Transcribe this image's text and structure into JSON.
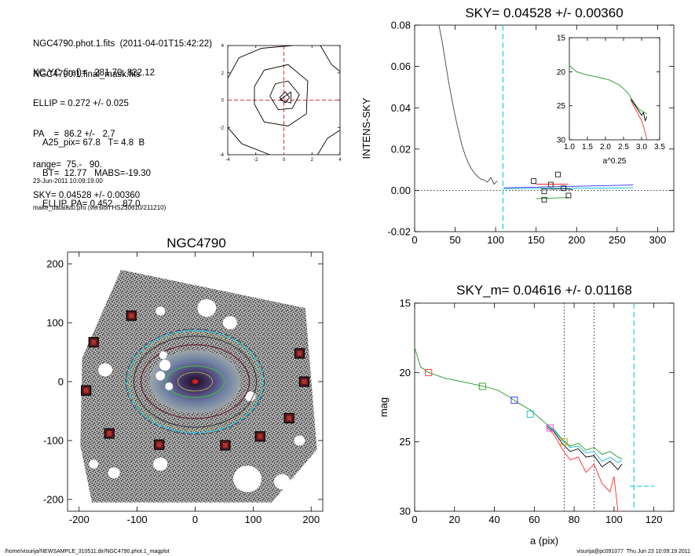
{
  "header": {
    "lines1": [
      "NGC4790.phot.1.fits  (2011-04-01T15:42:22)",
      "NGC4790.1.final_mask.fits"
    ],
    "lines2": [
      "XC,YC (iraf)=   281.70, 822.12",
      "ELLIP = 0.272 +/- 0.025",
      "PA    =  86.2 +/-   2.7",
      "range=  75.-   90.",
      "SKY= 0.04528 +/- 0.00360"
    ],
    "lines3": [
      "A25_pix= 67.8   T= 4.8  B",
      "BT=  12.77   MABS=-19.30",
      "ELLIP, PA= 0.452    87.0"
    ],
    "lines4": [
      "23-Jun-2011 10:09:19.00",
      "make_datalist0.pro (version HS230610/211210)"
    ]
  },
  "footer": {
    "left": "/home/visurija/NEWSAMPLE_310511.dir/NGC4790.phot.1_magplot",
    "right": "visurija@pc091077  Thu Jun 23 10:09:19 2011"
  },
  "chart_data": [
    {
      "id": "center-contour",
      "type": "contour",
      "title": "",
      "xlim": [
        -4,
        4
      ],
      "ylim": [
        -4,
        4
      ],
      "xticks": [
        -4,
        -2,
        0,
        2,
        4
      ],
      "yticks": [
        -4,
        -2,
        0,
        2,
        4
      ],
      "contours": [
        [
          [
            -0.3,
            0.2
          ],
          [
            0.1,
            0.6
          ],
          [
            0.4,
            0.2
          ],
          [
            0.1,
            -0.2
          ],
          [
            -0.3,
            0.2
          ]
        ],
        [
          [
            -1.0,
            0.3
          ],
          [
            -0.6,
            1.2
          ],
          [
            0.3,
            1.4
          ],
          [
            1.1,
            0.4
          ],
          [
            0.6,
            -0.6
          ],
          [
            -0.4,
            -0.7
          ],
          [
            -1.0,
            0.3
          ]
        ],
        [
          [
            -2.1,
            1.0
          ],
          [
            -1.4,
            2.2
          ],
          [
            0.3,
            2.6
          ],
          [
            1.7,
            1.4
          ],
          [
            1.6,
            -1.0
          ],
          [
            0.3,
            -1.9
          ],
          [
            -1.4,
            -1.6
          ],
          [
            -2.1,
            -0.3
          ],
          [
            -2.1,
            1.0
          ]
        ],
        [
          [
            -4.0,
            1.6
          ],
          [
            -3.2,
            3.1
          ],
          [
            -1.6,
            3.8
          ],
          [
            0.6,
            4.0
          ]
        ],
        [
          [
            2.6,
            4.0
          ],
          [
            3.4,
            2.6
          ],
          [
            4.0,
            2.1
          ]
        ],
        [
          [
            -4.0,
            -2.0
          ],
          [
            -3.0,
            -3.2
          ],
          [
            -1.0,
            -4.0
          ]
        ],
        [
          [
            2.4,
            -4.0
          ],
          [
            3.1,
            -2.8
          ],
          [
            4.0,
            -2.2
          ]
        ]
      ],
      "ellipse_axis": [
        [
          -0.3,
          0.0
        ],
        [
          0.5,
          0.6
        ],
        [
          0.5,
          -0.2
        ],
        [
          -0.3,
          0.0
        ]
      ],
      "crosshair": [
        0,
        0
      ]
    },
    {
      "id": "sky-profile",
      "type": "line",
      "title": "SKY= 0.04528 +/- 0.00360",
      "ylabel": "INTENS-SKY",
      "xlim": [
        0,
        320
      ],
      "ylim": [
        -0.02,
        0.08
      ],
      "xticks": [
        0,
        50,
        100,
        150,
        200,
        250,
        300
      ],
      "yticks": [
        -0.02,
        0.0,
        0.02,
        0.04,
        0.06,
        0.08
      ],
      "series": [
        {
          "color": "#444444",
          "x": [
            30,
            34,
            38,
            42,
            46,
            50,
            54,
            58,
            62,
            66,
            70,
            74,
            78,
            82,
            86,
            90,
            94,
            98,
            102
          ],
          "y": [
            0.08,
            0.072,
            0.062,
            0.0525,
            0.044,
            0.036,
            0.029,
            0.0225,
            0.0175,
            0.0135,
            0.0105,
            0.0082,
            0.0066,
            0.0054,
            0.005,
            0.004,
            0.0062,
            0.003,
            0.0045
          ]
        },
        {
          "color": "#000000",
          "x": [
            155,
            170,
            185,
            195
          ],
          "y": [
            0.001,
            0.0006,
            0.0008,
            0.0004
          ]
        },
        {
          "color": "#ff2a2a",
          "x": [
            150,
            190
          ],
          "y": [
            0.003,
            0.003
          ]
        },
        {
          "color": "#1f9a1f",
          "x": [
            150,
            190
          ],
          "y": [
            -0.004,
            -0.0035
          ]
        },
        {
          "color": "#2a2aff",
          "x": [
            110,
            270
          ],
          "y": [
            0.0012,
            0.0026
          ]
        },
        {
          "color": "#17b9d8",
          "x": [
            110,
            270
          ],
          "y": [
            0.0008,
            0.0012
          ]
        }
      ],
      "squares": [
        [
          147,
          0.0045
        ],
        [
          160,
          -0.0005
        ],
        [
          168,
          0.0028
        ],
        [
          177,
          0.0077
        ],
        [
          184,
          0.001
        ],
        [
          190,
          -0.0025
        ],
        [
          160,
          -0.0045
        ]
      ],
      "sky_line": 109
    },
    {
      "id": "sky-inset",
      "type": "line",
      "xlabel": "a^0.25",
      "xlim": [
        1.0,
        3.5
      ],
      "ylim": [
        30,
        15
      ],
      "xticks": [
        1.0,
        1.5,
        2.0,
        2.5,
        3.0,
        3.5
      ],
      "yticks": [
        15,
        20,
        25,
        30
      ],
      "series": [
        {
          "color": "#1f9a1f",
          "x": [
            1.0,
            1.2,
            1.5,
            1.8,
            2.1,
            2.4,
            2.6,
            2.75,
            2.85,
            2.95,
            3.05,
            3.15
          ],
          "y": [
            19.1,
            20.0,
            20.5,
            20.8,
            21.2,
            22.0,
            23.0,
            24.2,
            25.0,
            25.6,
            25.9,
            26.2
          ]
        },
        {
          "color": "#000000",
          "x": [
            2.7,
            2.8,
            2.9,
            3.0,
            3.05,
            3.1,
            3.15
          ],
          "y": [
            24.0,
            24.8,
            25.6,
            26.4,
            26.0,
            27.2,
            26.6
          ]
        },
        {
          "color": "#ff2a2a",
          "x": [
            2.7,
            2.8,
            2.9,
            3.0,
            3.05,
            3.1,
            3.15
          ],
          "y": [
            24.2,
            25.2,
            26.2,
            27.2,
            28.0,
            29.0,
            30.0
          ]
        }
      ]
    },
    {
      "id": "galaxy-image",
      "type": "image",
      "title": "NGC4790",
      "xlim": [
        -220,
        220
      ],
      "ylim": [
        -220,
        220
      ],
      "xticks": [
        -200,
        -100,
        0,
        100,
        200
      ],
      "yticks": [
        -200,
        -100,
        0,
        100,
        200
      ],
      "sky_boxes": [
        [
          -110,
          112
        ],
        [
          -175,
          67
        ],
        [
          -188,
          -15
        ],
        [
          -148,
          -88
        ],
        [
          -62,
          -107
        ],
        [
          52,
          -108
        ],
        [
          112,
          -93
        ],
        [
          162,
          -62
        ],
        [
          188,
          0
        ],
        [
          180,
          48
        ]
      ]
    },
    {
      "id": "mag-profile",
      "type": "line",
      "title": "SKY_m=  0.04616 +/- 0.01168",
      "xlabel": "a (pix)",
      "ylabel": "mag",
      "xlim": [
        0,
        130
      ],
      "ylim": [
        30,
        15
      ],
      "xticks": [
        0,
        20,
        40,
        60,
        80,
        100,
        120
      ],
      "yticks": [
        15,
        20,
        25,
        30
      ],
      "series": [
        {
          "color": "#1f9a1f",
          "x": [
            0,
            3,
            7,
            15,
            25,
            35,
            42,
            48,
            52,
            58,
            62,
            66,
            70,
            74,
            78,
            82,
            86,
            90,
            94,
            98,
            102,
            104
          ],
          "y": [
            18.2,
            19.6,
            20.0,
            20.4,
            20.7,
            21.0,
            21.3,
            21.8,
            22.2,
            22.7,
            23.2,
            23.7,
            24.1,
            24.8,
            25.3,
            25.1,
            25.6,
            25.4,
            25.9,
            25.7,
            26.1,
            26.2
          ]
        },
        {
          "color": "#000000",
          "x": [
            66,
            70,
            74,
            78,
            82,
            86,
            90,
            94,
            98,
            102,
            104
          ],
          "y": [
            23.8,
            24.3,
            25.1,
            25.7,
            25.5,
            26.1,
            26.0,
            26.8,
            26.4,
            27.0,
            26.6
          ]
        },
        {
          "color": "#ff2a2a",
          "x": [
            66,
            70,
            74,
            78,
            82,
            86,
            90,
            94,
            98,
            100,
            102,
            104
          ],
          "y": [
            23.9,
            24.5,
            25.5,
            26.3,
            26.1,
            27.2,
            26.6,
            28.0,
            28.6,
            27.5,
            30.0,
            30.0
          ]
        },
        {
          "color": "#17b9d8",
          "x": [
            66,
            70,
            74,
            78,
            82,
            86,
            90,
            94,
            98,
            102,
            104
          ],
          "y": [
            23.8,
            24.2,
            24.9,
            25.4,
            25.3,
            25.8,
            25.7,
            26.4,
            26.1,
            26.5,
            26.3
          ]
        }
      ],
      "squares": [
        [
          7,
          20.0,
          "#ff2a2a"
        ],
        [
          34,
          21.0,
          "#1f9a1f"
        ],
        [
          50,
          22.0,
          "#2a2aff"
        ],
        [
          58,
          23.0,
          "#17b9d8"
        ],
        [
          68,
          24.0,
          "#e040e0"
        ],
        [
          75,
          25.0,
          "#e0a000"
        ]
      ],
      "vlines": [
        75,
        90
      ],
      "sky_line": 110,
      "sky_level": [
        [
          108,
          28.2
        ],
        [
          120,
          28.2
        ]
      ]
    }
  ]
}
